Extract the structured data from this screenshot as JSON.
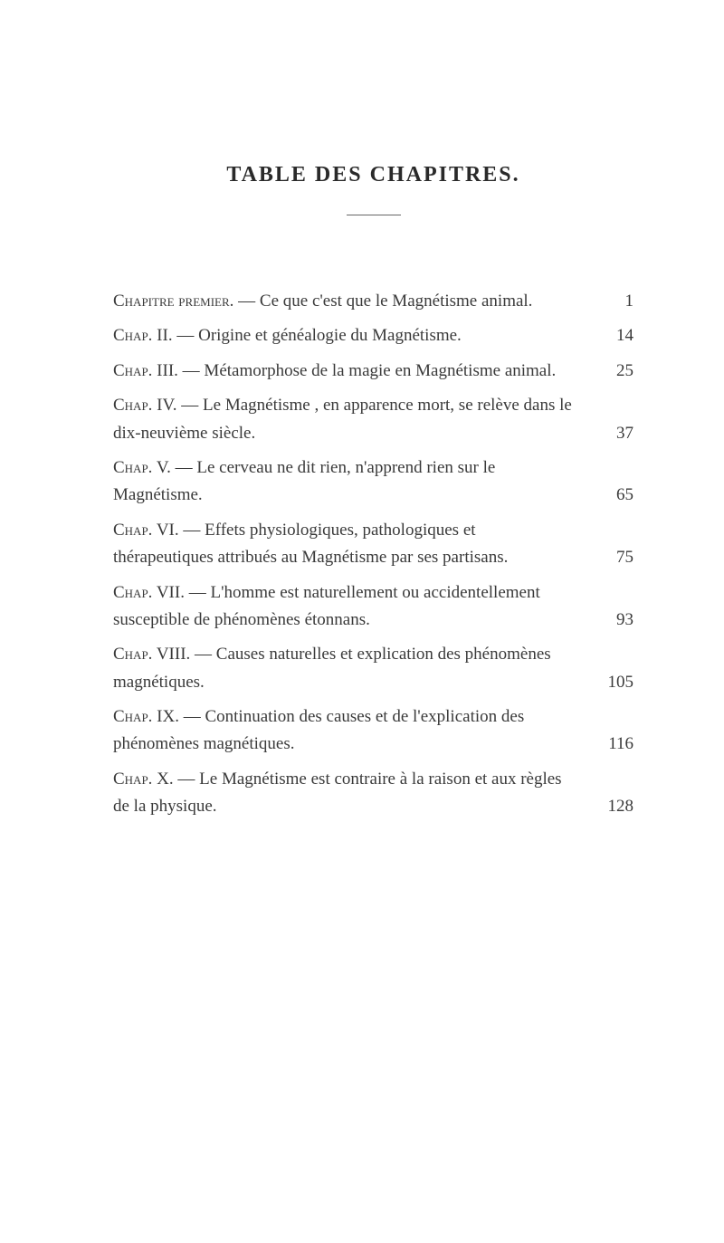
{
  "title": "TABLE DES CHAPITRES.",
  "entries": [
    {
      "label": "Chapitre premier.",
      "text": " — Ce que c'est que le Magnétisme animal.",
      "page": "1",
      "multiline": true
    },
    {
      "label": "Chap. II.",
      "text": " — Origine et généalogie du Magnétisme.",
      "page": "14",
      "multiline": false
    },
    {
      "label": "Chap. III.",
      "text": " — Métamorphose de la magie en Magnétisme animal.",
      "page": "25",
      "multiline": true
    },
    {
      "label": "Chap. IV.",
      "text": " — Le Magnétisme , en apparence mort, se relève dans le dix-neuvième siècle.",
      "page": "37",
      "multiline": true
    },
    {
      "label": "Chap. V.",
      "text": " — Le cerveau ne dit rien, n'apprend rien sur le Magnétisme.",
      "page": "65",
      "multiline": true
    },
    {
      "label": "Chap. VI.",
      "text": " — Effets physiologiques, pathologiques et thérapeutiques attribués au Magnétisme par ses partisans.",
      "page": "75",
      "multiline": true
    },
    {
      "label": "Chap. VII.",
      "text": " — L'homme est naturellement ou accidentellement susceptible de phénomènes étonnans.",
      "page": "93",
      "multiline": true
    },
    {
      "label": "Chap. VIII.",
      "text": " — Causes naturelles et explication des phénomènes magnétiques.",
      "page": "105",
      "multiline": true
    },
    {
      "label": "Chap. IX.",
      "text": " — Continuation des causes et de l'explication des phénomènes magnétiques.",
      "page": "116",
      "multiline": true
    },
    {
      "label": "Chap. X.",
      "text": " — Le Magnétisme est contraire à la raison et aux règles de la physique.",
      "page": "128",
      "multiline": true
    }
  ]
}
